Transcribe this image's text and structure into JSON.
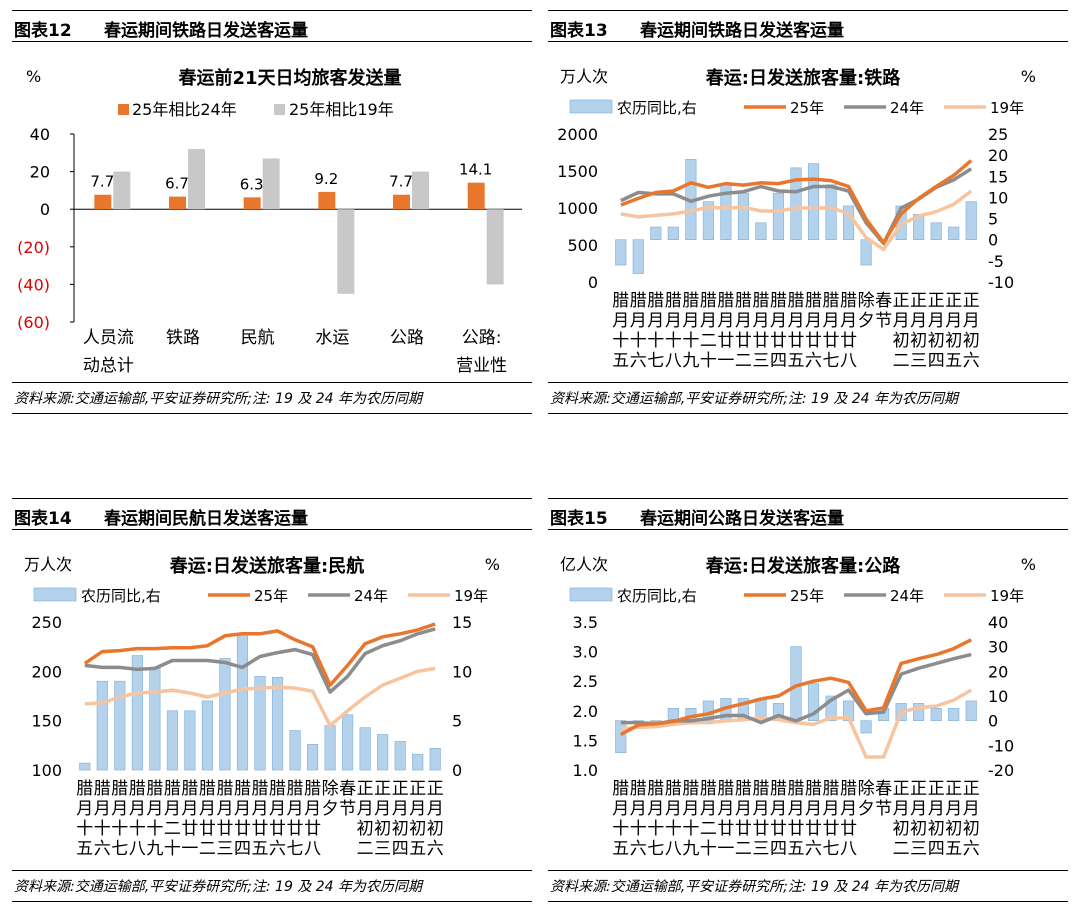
{
  "colors": {
    "orange": "#E8762C",
    "gray": "#8C8C8C",
    "lightgray": "#C8C8C8",
    "peach": "#F7C4A0",
    "blue": "#B4D2EC",
    "blueEdge": "#7FAED6",
    "neg": "#E00000"
  },
  "panels": [
    {
      "fig": "图表12",
      "name": "春运期间铁路日发送客运量",
      "source": "资料来源:交通运输部,平安证券研究所;注: 19 及 24 年为农历同期",
      "chart_data": {
        "type": "bar",
        "title": "春运前21天日均旅客发送量",
        "yunit": "%",
        "ylim": [
          -60,
          40
        ],
        "yticks": [
          "40",
          "20",
          "0",
          "(20)",
          "(40)",
          "(60)"
        ],
        "categories": [
          [
            "人员流",
            "动总计"
          ],
          [
            "铁路"
          ],
          [
            "民航"
          ],
          [
            "水运"
          ],
          [
            "公路"
          ],
          [
            "公路:",
            "营业性"
          ]
        ],
        "series": [
          {
            "name": "25年相比24年",
            "values": [
              7.7,
              6.7,
              6.3,
              9.2,
              7.7,
              14.1
            ],
            "labels": [
              "7.7",
              "6.7",
              "6.3",
              "9.2",
              "7.7",
              "14.1"
            ]
          },
          {
            "name": "25年相比19年",
            "values": [
              20,
              32,
              27,
              -45,
              20,
              -40
            ]
          }
        ]
      }
    },
    {
      "fig": "图表13",
      "name": "春运期间铁路日发送客运量",
      "source": "资料来源:交通运输部,平安证券研究所;注: 19 及 24 年为农历同期",
      "chart_data": {
        "type": "line",
        "title": "春运:日发送旅客量:铁路",
        "yunit_left": "万人次",
        "yunit_right": "%",
        "ylim_left": [
          0,
          2000
        ],
        "yticks_left": [
          "2000",
          "1500",
          "1000",
          "500",
          "0"
        ],
        "ylim_right": [
          -10,
          25
        ],
        "yticks_right": [
          "25",
          "20",
          "15",
          "10",
          "5",
          "0",
          "-5",
          "-10"
        ],
        "xlabels": [
          [
            "腊",
            "月",
            "十",
            "五"
          ],
          [
            "腊",
            "月",
            "十",
            "六"
          ],
          [
            "腊",
            "月",
            "十",
            "七"
          ],
          [
            "腊",
            "月",
            "十",
            "八"
          ],
          [
            "腊",
            "月",
            "十",
            "九"
          ],
          [
            "腊",
            "月",
            "二",
            "十"
          ],
          [
            "腊",
            "月",
            "廿",
            "一"
          ],
          [
            "腊",
            "月",
            "廿",
            "二"
          ],
          [
            "腊",
            "月",
            "廿",
            "三"
          ],
          [
            "腊",
            "月",
            "廿",
            "四"
          ],
          [
            "腊",
            "月",
            "廿",
            "五"
          ],
          [
            "腊",
            "月",
            "廿",
            "六"
          ],
          [
            "腊",
            "月",
            "廿",
            "七"
          ],
          [
            "腊",
            "月",
            "廿",
            "八"
          ],
          [
            "除",
            "夕"
          ],
          [
            "春",
            "节"
          ],
          [
            "正",
            "月",
            "初",
            "二"
          ],
          [
            "正",
            "月",
            "初",
            "三"
          ],
          [
            "正",
            "月",
            "初",
            "四"
          ],
          [
            "正",
            "月",
            "初",
            "五"
          ],
          [
            "正",
            "月",
            "初",
            "六"
          ]
        ],
        "bars": {
          "name": "农历同比,右",
          "values": [
            -6,
            -8,
            3,
            3,
            19,
            9,
            13,
            11,
            4,
            11,
            17,
            18,
            13,
            8,
            -6,
            0,
            8,
            6,
            4,
            3,
            9
          ]
        },
        "series": [
          {
            "name": "25年",
            "values": [
              1040,
              1130,
              1210,
              1230,
              1340,
              1280,
              1330,
              1310,
              1340,
              1330,
              1380,
              1390,
              1370,
              1290,
              850,
              530,
              920,
              1130,
              1290,
              1440,
              1640
            ]
          },
          {
            "name": "24年",
            "values": [
              1100,
              1210,
              1190,
              1190,
              1090,
              1160,
              1200,
              1220,
              1290,
              1230,
              1220,
              1290,
              1290,
              1230,
              800,
              520,
              1000,
              1120,
              1280,
              1380,
              1530
            ]
          },
          {
            "name": "19年",
            "values": [
              920,
              880,
              900,
              920,
              960,
              1010,
              1000,
              1010,
              960,
              960,
              1000,
              1000,
              1000,
              930,
              600,
              440,
              780,
              890,
              950,
              1050,
              1230
            ]
          }
        ]
      }
    },
    {
      "fig": "图表14",
      "name": "春运期间民航日发送客运量",
      "source": "资料来源:交通运输部,平安证券研究所;注: 19 及 24 年为农历同期",
      "chart_data": {
        "type": "line",
        "title": "春运:日发送旅客量:民航",
        "yunit_left": "万人次",
        "yunit_right": "%",
        "ylim_left": [
          100,
          250
        ],
        "yticks_left": [
          "250",
          "200",
          "150",
          "100"
        ],
        "ylim_right": [
          0,
          15
        ],
        "yticks_right": [
          "15",
          "10",
          "5",
          "0"
        ],
        "xlabels": [
          [
            "腊",
            "月",
            "十",
            "五"
          ],
          [
            "腊",
            "月",
            "十",
            "六"
          ],
          [
            "腊",
            "月",
            "十",
            "七"
          ],
          [
            "腊",
            "月",
            "十",
            "八"
          ],
          [
            "腊",
            "月",
            "十",
            "九"
          ],
          [
            "腊",
            "月",
            "二",
            "十"
          ],
          [
            "腊",
            "月",
            "廿",
            "一"
          ],
          [
            "腊",
            "月",
            "廿",
            "二"
          ],
          [
            "腊",
            "月",
            "廿",
            "三"
          ],
          [
            "腊",
            "月",
            "廿",
            "四"
          ],
          [
            "腊",
            "月",
            "廿",
            "五"
          ],
          [
            "腊",
            "月",
            "廿",
            "六"
          ],
          [
            "腊",
            "月",
            "廿",
            "七"
          ],
          [
            "腊",
            "月",
            "廿",
            "八"
          ],
          [
            "除",
            "夕"
          ],
          [
            "春",
            "节"
          ],
          [
            "正",
            "月",
            "初",
            "二"
          ],
          [
            "正",
            "月",
            "初",
            "三"
          ],
          [
            "正",
            "月",
            "初",
            "四"
          ],
          [
            "正",
            "月",
            "初",
            "五"
          ],
          [
            "正",
            "月",
            "初",
            "六"
          ]
        ],
        "bars": {
          "name": "农历同比,右",
          "values": [
            0.7,
            9,
            9,
            11.6,
            10.4,
            6,
            6,
            7,
            11.3,
            13.9,
            9.5,
            9.4,
            4,
            2.6,
            4.5,
            5.6,
            4.3,
            3.6,
            2.9,
            1.6,
            2.2
          ]
        },
        "series": [
          {
            "name": "25年",
            "values": [
              208,
              220,
              221,
              223,
              223,
              224,
              224,
              226,
              236,
              238,
              238,
              241,
              232,
              225,
              186,
              206,
              228,
              235,
              238,
              242,
              248
            ]
          },
          {
            "name": "24年",
            "values": [
              206,
              204,
              204,
              202,
              203,
              211,
              211,
              211,
              209,
              204,
              215,
              219,
              222,
              217,
              179,
              195,
              218,
              226,
              231,
              238,
              243
            ]
          },
          {
            "name": "19年",
            "values": [
              167,
              168,
              174,
              178,
              179,
              181,
              178,
              174,
              178,
              182,
              183,
              184,
              183,
              180,
              145,
              160,
              174,
              186,
              193,
              200,
              203
            ]
          }
        ]
      }
    },
    {
      "fig": "图表15",
      "name": "春运期间公路日发送客运量",
      "source": "资料来源:交通运输部,平安证券研究所;注: 19 及 24 年为农历同期",
      "chart_data": {
        "type": "line",
        "title": "春运:日发送旅客量:公路",
        "yunit_left": "亿人次",
        "yunit_right": "%",
        "ylim_left": [
          1.0,
          3.5
        ],
        "yticks_left": [
          "3.5",
          "3.0",
          "2.5",
          "2.0",
          "1.5",
          "1.0"
        ],
        "ylim_right": [
          -20,
          40
        ],
        "yticks_right": [
          "40",
          "30",
          "20",
          "10",
          "0",
          "-10",
          "-20"
        ],
        "xlabels": [
          [
            "腊",
            "月",
            "十",
            "五"
          ],
          [
            "腊",
            "月",
            "十",
            "六"
          ],
          [
            "腊",
            "月",
            "十",
            "七"
          ],
          [
            "腊",
            "月",
            "十",
            "八"
          ],
          [
            "腊",
            "月",
            "十",
            "九"
          ],
          [
            "腊",
            "月",
            "二",
            "十"
          ],
          [
            "腊",
            "月",
            "廿",
            "一"
          ],
          [
            "腊",
            "月",
            "廿",
            "二"
          ],
          [
            "腊",
            "月",
            "廿",
            "三"
          ],
          [
            "腊",
            "月",
            "廿",
            "四"
          ],
          [
            "腊",
            "月",
            "廿",
            "五"
          ],
          [
            "腊",
            "月",
            "廿",
            "六"
          ],
          [
            "腊",
            "月",
            "廿",
            "七"
          ],
          [
            "腊",
            "月",
            "廿",
            "八"
          ],
          [
            "除",
            "夕"
          ],
          [
            "春",
            "节"
          ],
          [
            "正",
            "月",
            "初",
            "二"
          ],
          [
            "正",
            "月",
            "初",
            "三"
          ],
          [
            "正",
            "月",
            "初",
            "四"
          ],
          [
            "正",
            "月",
            "初",
            "五"
          ],
          [
            "正",
            "月",
            "初",
            "六"
          ]
        ],
        "bars": {
          "name": "农历同比,右",
          "values": [
            -13,
            0,
            0,
            5,
            5,
            8,
            9,
            9,
            9,
            7,
            30,
            15,
            10,
            8,
            -5,
            5,
            7,
            7,
            5,
            5,
            8
          ]
        },
        "series": [
          {
            "name": "25年",
            "values": [
              1.6,
              1.76,
              1.78,
              1.82,
              1.9,
              1.95,
              2.05,
              2.12,
              2.2,
              2.25,
              2.42,
              2.5,
              2.55,
              2.48,
              2.0,
              2.05,
              2.8,
              2.88,
              2.95,
              3.05,
              3.2
            ]
          },
          {
            "name": "24年",
            "values": [
              1.8,
              1.8,
              1.78,
              1.83,
              1.83,
              1.87,
              1.92,
              1.92,
              1.8,
              1.92,
              1.83,
              1.95,
              2.18,
              2.35,
              1.95,
              1.98,
              2.62,
              2.72,
              2.8,
              2.88,
              2.95
            ]
          },
          {
            "name": "19年",
            "values": [
              1.7,
              1.72,
              1.73,
              1.77,
              1.8,
              1.8,
              1.83,
              1.85,
              1.88,
              1.85,
              1.8,
              1.77,
              1.88,
              1.88,
              1.22,
              1.22,
              1.98,
              2.05,
              2.08,
              2.18,
              2.35
            ]
          }
        ]
      }
    }
  ]
}
